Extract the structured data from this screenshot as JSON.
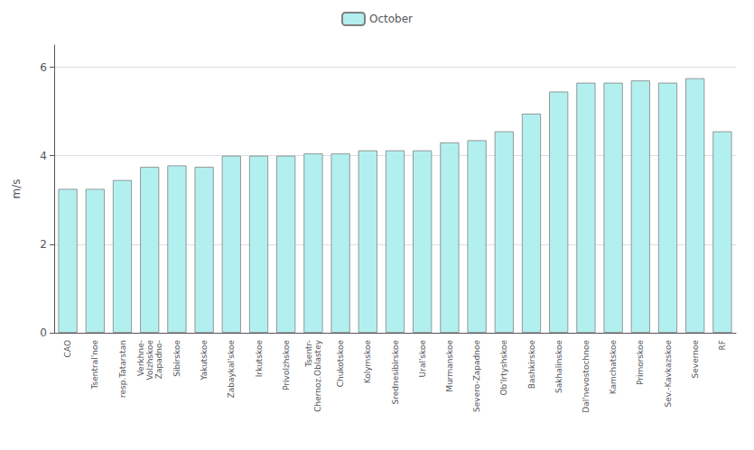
{
  "chart_data": {
    "type": "bar",
    "categories": [
      "CAO",
      "Tsentral'noe",
      "resp.Tatarstan",
      "Verkhne-\nVolzhskoe\nZapadno-",
      "Sibirskoe",
      "Yakutskoe",
      "Zabaykal'skoe",
      "Irkutskoe",
      "Privolzhskoe",
      "Tsentr-\nChernoz.Oblastey",
      "Chukotskoe",
      "Kolymskoe",
      "Srednesibirskoe",
      "Ural'skoe",
      "Murmanskoe",
      "Severo-Zapadnoe",
      "Ob'Irtyshskoe",
      "Bashkirskoe",
      "Sakhalinskoe",
      "Dal'nevostochnoe",
      "Kamchatskoe",
      "Primorskoe",
      "Sev.-Kavkazskoe",
      "Severnoe",
      "RF"
    ],
    "series": [
      {
        "name": "October",
        "color": "#b2f0f0",
        "values": [
          3.25,
          3.25,
          3.45,
          3.75,
          3.78,
          3.75,
          4.0,
          4.0,
          4.0,
          4.05,
          4.05,
          4.12,
          4.12,
          4.12,
          4.3,
          4.35,
          4.55,
          4.95,
          5.45,
          5.65,
          5.65,
          5.7,
          5.65,
          5.75,
          4.55
        ]
      }
    ],
    "ylabel": "m/s",
    "ylim": [
      0,
      6.5
    ],
    "yticks": [
      0,
      2,
      4,
      6
    ],
    "grid": true,
    "legend": "top"
  }
}
